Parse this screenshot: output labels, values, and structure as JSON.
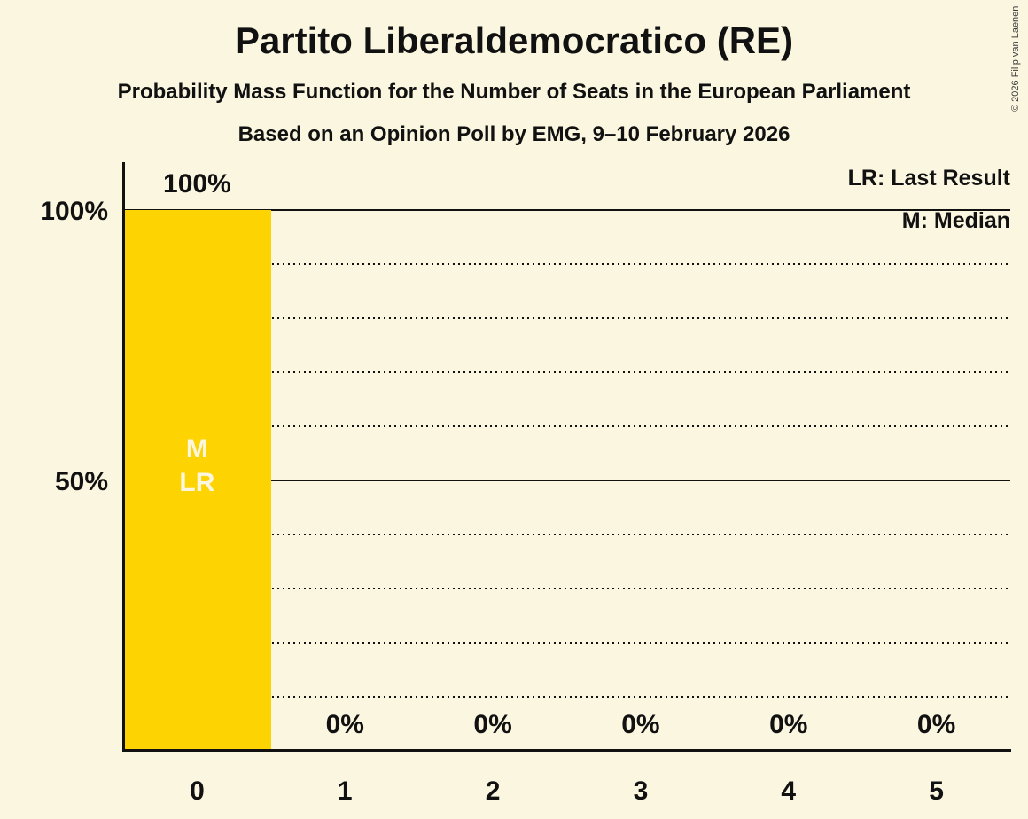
{
  "header": {
    "title": "Partito Liberaldemocratico (RE)",
    "subtitle": "Probability Mass Function for the Number of Seats in the European Parliament",
    "poll_info": "Based on an Opinion Poll by EMG, 9–10 February 2026"
  },
  "copyright": "© 2026 Filip van Laenen",
  "legend": {
    "last_result": "LR: Last Result",
    "median": "M: Median"
  },
  "y_axis_labels": [
    {
      "value": 100,
      "text": "100%"
    },
    {
      "value": 50,
      "text": "50%"
    }
  ],
  "chart_data": {
    "type": "bar",
    "title": "Partito Liberaldemocratico (RE)",
    "xlabel": "",
    "ylabel": "",
    "categories": [
      "0",
      "1",
      "2",
      "3",
      "4",
      "5"
    ],
    "values": [
      100,
      0,
      0,
      0,
      0,
      0
    ],
    "value_labels": [
      "100%",
      "0%",
      "0%",
      "0%",
      "0%",
      "0%"
    ],
    "ylim": [
      0,
      100
    ],
    "gridlines": {
      "solid_at": [
        100,
        50
      ],
      "dotted_at": [
        90,
        80,
        70,
        60,
        40,
        30,
        20,
        10
      ]
    },
    "annotations": [
      {
        "category_index": 0,
        "lines": [
          "M",
          "LR"
        ]
      }
    ],
    "legend_position": "top-right",
    "colors": {
      "bar": "#FDD402",
      "background": "#FAF6DF",
      "text": "#111111",
      "bar_label": "#FAF6DF"
    }
  }
}
